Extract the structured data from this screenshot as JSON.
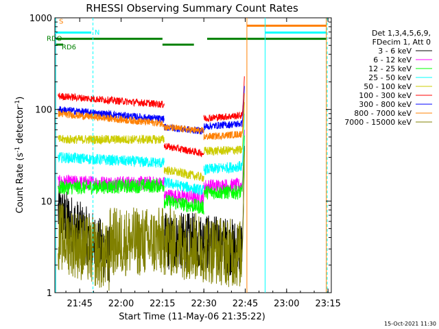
{
  "chart_data": {
    "type": "line",
    "title": "RHESSI Observing Summary Count Rates",
    "xlabel": "Start Time (11-May-06 21:35:22)",
    "ylabel_main": "Count Rate (s",
    "ylabel_sup1": "-1",
    "ylabel_mid": " detector",
    "ylabel_sup2": "-1",
    "ylabel_end": ")",
    "y_scale": "log",
    "ylim": [
      1,
      1000
    ],
    "xlim_minutes": [
      21.6,
      23.27
    ],
    "x_ticks": [
      {
        "label": "21:45",
        "hour": 21.75
      },
      {
        "label": "22:00",
        "hour": 22.0
      },
      {
        "label": "22:15",
        "hour": 22.25
      },
      {
        "label": "22:30",
        "hour": 22.5
      },
      {
        "label": "22:45",
        "hour": 22.75
      },
      {
        "label": "23:00",
        "hour": 23.0
      },
      {
        "label": "23:15",
        "hour": 23.25
      }
    ],
    "y_ticks": [
      {
        "label": "1",
        "value": 1
      },
      {
        "label": "10",
        "value": 10
      },
      {
        "label": "100",
        "value": 100
      },
      {
        "label": "1000",
        "value": 1000
      }
    ],
    "legend_header": [
      "Det 1,3,4,5,6,9,",
      "FDecim 1, Att 0"
    ],
    "legend_position": "right",
    "footer_date": "15-Oct-2021 11:30",
    "series": [
      {
        "name": "3 - 6 keV",
        "color": "#000000",
        "segments": [
          [
            21.62,
            21.93,
            7.5,
            2.6
          ],
          [
            22.26,
            22.5,
            3.6,
            3.6
          ],
          [
            22.5,
            22.73,
            3.6,
            3.0
          ]
        ],
        "rise_to": 40,
        "noise": 0.32
      },
      {
        "name": "6 - 12 keV",
        "color": "#ff00ff",
        "segments": [
          [
            21.62,
            22.26,
            16,
            15.5
          ],
          [
            22.26,
            22.5,
            11.5,
            10.8
          ],
          [
            22.5,
            22.73,
            14.5,
            14.8
          ]
        ],
        "rise_to": 60,
        "noise": 0.08
      },
      {
        "name": "12 - 25 keV",
        "color": "#00ff00",
        "segments": [
          [
            21.62,
            22.26,
            14,
            14.8
          ],
          [
            22.26,
            22.5,
            10,
            8.5
          ],
          [
            22.5,
            22.73,
            12.5,
            12.5
          ]
        ],
        "rise_to": 52,
        "noise": 0.08
      },
      {
        "name": "25 - 50 keV",
        "color": "#00ffff",
        "segments": [
          [
            21.62,
            22.26,
            30,
            26
          ],
          [
            22.26,
            22.5,
            16,
            13
          ],
          [
            22.5,
            22.73,
            22,
            24
          ]
        ],
        "rise_to": 90,
        "noise": 0.06
      },
      {
        "name": "50 - 100 keV",
        "color": "#cccc00",
        "segments": [
          [
            21.62,
            22.26,
            47,
            47
          ],
          [
            22.26,
            22.5,
            22,
            18
          ],
          [
            22.5,
            22.73,
            35,
            36
          ]
        ],
        "rise_to": 120,
        "noise": 0.05
      },
      {
        "name": "100 - 300 keV",
        "color": "#ff0000",
        "segments": [
          [
            21.62,
            22.26,
            140,
            113
          ],
          [
            22.26,
            22.5,
            40,
            33
          ],
          [
            22.5,
            22.73,
            80,
            86
          ]
        ],
        "rise_to": 230,
        "noise": 0.04
      },
      {
        "name": "300 - 800 keV",
        "color": "#0000ff",
        "segments": [
          [
            21.62,
            22.26,
            100,
            78
          ],
          [
            22.26,
            22.5,
            64,
            58
          ],
          [
            22.5,
            22.73,
            65,
            70
          ]
        ],
        "rise_to": 180,
        "noise": 0.04
      },
      {
        "name": "800 - 7000 keV",
        "color": "#ff8000",
        "segments": [
          [
            21.62,
            22.26,
            90,
            70
          ],
          [
            22.26,
            22.5,
            64,
            58
          ],
          [
            22.5,
            22.73,
            50,
            54
          ]
        ],
        "rise_to": 150,
        "noise": 0.04
      },
      {
        "name": "7000 - 15000 keV",
        "color": "#808000",
        "segments": [
          [
            21.62,
            21.93,
            4.2,
            2.3
          ],
          [
            21.93,
            22.26,
            3.6,
            3.6
          ],
          [
            22.26,
            22.73,
            3.6,
            2.6
          ]
        ],
        "rise_to": 35,
        "noise": 0.38
      }
    ],
    "flags": [
      {
        "label": "S",
        "color": "#ff8000",
        "value": 820,
        "ranges": [
          [
            22.76,
            23.24
          ]
        ]
      },
      {
        "label": "N",
        "color": "#00ffff",
        "value": 690,
        "ranges": [
          [
            21.6,
            21.82
          ],
          [
            22.87,
            23.24
          ]
        ]
      },
      {
        "label": "RDO",
        "color": "#008000",
        "value": 590,
        "ranges": [
          [
            21.6,
            22.25
          ],
          [
            22.52,
            23.24
          ]
        ]
      },
      {
        "label": "RD6",
        "color": "#008000",
        "value": 510,
        "ranges": [
          [
            21.6,
            21.65
          ],
          [
            22.25,
            22.44
          ]
        ]
      }
    ],
    "vlines": [
      {
        "hour": 21.605,
        "color": "#00ffff",
        "dashed": false
      },
      {
        "hour": 21.83,
        "color": "#00ffff",
        "dashed": true
      },
      {
        "hour": 22.76,
        "color": "#ff8000",
        "dashed": false
      },
      {
        "hour": 22.87,
        "color": "#00ffff",
        "dashed": false
      },
      {
        "hour": 23.24,
        "color": "#ff8000",
        "dashed": false
      },
      {
        "hour": 23.245,
        "color": "#00ffff",
        "dashed": true
      }
    ]
  }
}
